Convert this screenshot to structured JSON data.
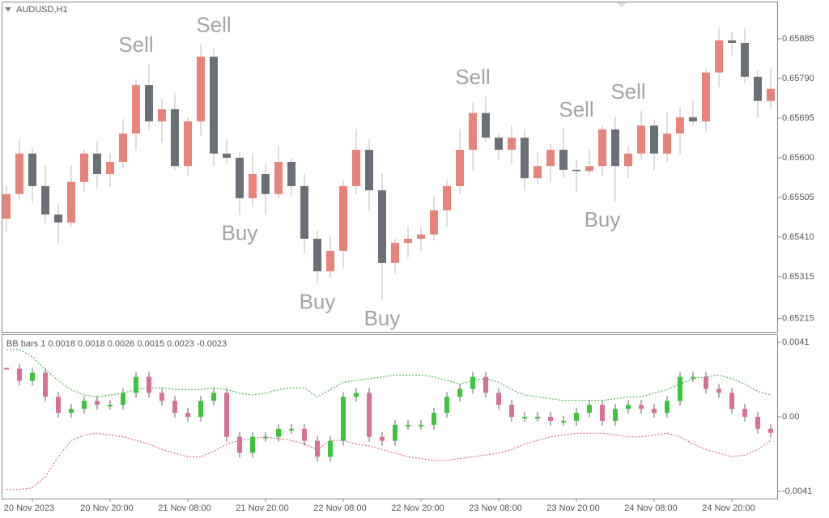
{
  "chart_data": [
    {
      "type": "candlestick",
      "title": "AUDUSD,H1",
      "up_color": "#e8837a",
      "down_color": "#6b6f76",
      "open": [
        0.65454,
        0.65513,
        0.6561,
        0.65532,
        0.65464,
        0.65445,
        0.65542,
        0.6561,
        0.65561,
        0.6559,
        0.65658,
        0.65774,
        0.65687,
        0.65716,
        0.6558,
        0.65687,
        0.65842,
        0.6561,
        0.656,
        0.65503,
        0.65561,
        0.65513,
        0.6559,
        0.65532,
        0.65406,
        0.65328,
        0.65377,
        0.65532,
        0.65619,
        0.65522,
        0.65348,
        0.65396,
        0.65406,
        0.65416,
        0.65474,
        0.65532,
        0.65619,
        0.65707,
        0.65648,
        0.65619,
        0.65648,
        0.65551,
        0.6558,
        0.65619,
        0.65571,
        0.65568,
        0.6558,
        0.65668,
        0.6558,
        0.6561,
        0.65677,
        0.6561,
        0.65658,
        0.65697,
        0.65687,
        0.65804,
        0.65881,
        0.65875,
        0.65794,
        0.65736
      ],
      "high": [
        0.65533,
        0.65645,
        0.65625,
        0.65582,
        0.65489,
        0.65582,
        0.6562,
        0.6564,
        0.6561,
        0.65693,
        0.65789,
        0.65824,
        0.65741,
        0.65756,
        0.65697,
        0.65872,
        0.65862,
        0.65645,
        0.65615,
        0.65611,
        0.65586,
        0.6563,
        0.656,
        0.65562,
        0.65426,
        0.65412,
        0.65547,
        0.65669,
        0.65644,
        0.65562,
        0.65406,
        0.65436,
        0.65436,
        0.65509,
        0.65547,
        0.65669,
        0.65732,
        0.65747,
        0.65658,
        0.65678,
        0.65668,
        0.65615,
        0.65634,
        0.65669,
        0.65596,
        0.6562,
        0.65678,
        0.65698,
        0.6563,
        0.65712,
        0.65692,
        0.65708,
        0.65722,
        0.65737,
        0.65814,
        0.65911,
        0.65901,
        0.6591,
        0.65809,
        0.65815
      ],
      "low": [
        0.65424,
        0.65498,
        0.65492,
        0.65444,
        0.65395,
        0.65435,
        0.65517,
        0.65526,
        0.65531,
        0.65575,
        0.65618,
        0.65667,
        0.65637,
        0.6557,
        0.65555,
        0.65652,
        0.6558,
        0.65585,
        0.65463,
        0.65483,
        0.65463,
        0.65503,
        0.65507,
        0.65371,
        0.65298,
        0.65313,
        0.65337,
        0.65512,
        0.65472,
        0.65258,
        0.65323,
        0.65361,
        0.65376,
        0.65401,
        0.65434,
        0.65512,
        0.65569,
        0.65638,
        0.65594,
        0.65584,
        0.65521,
        0.65536,
        0.6554,
        0.65551,
        0.65518,
        0.65558,
        0.65555,
        0.65495,
        0.6555,
        0.65595,
        0.6557,
        0.6559,
        0.65608,
        0.65677,
        0.65662,
        0.65769,
        0.65845,
        0.65779,
        0.65696,
        0.65716
      ],
      "close": [
        0.65513,
        0.6561,
        0.65532,
        0.65464,
        0.65445,
        0.65542,
        0.6561,
        0.65561,
        0.6559,
        0.65658,
        0.65774,
        0.65687,
        0.65716,
        0.6558,
        0.65687,
        0.65842,
        0.6561,
        0.656,
        0.65503,
        0.65561,
        0.65513,
        0.6559,
        0.65532,
        0.65406,
        0.65328,
        0.65377,
        0.65532,
        0.65619,
        0.65522,
        0.65348,
        0.65396,
        0.65406,
        0.65416,
        0.65474,
        0.65532,
        0.65619,
        0.65707,
        0.65648,
        0.65619,
        0.65648,
        0.65551,
        0.6558,
        0.65619,
        0.65571,
        0.65568,
        0.6558,
        0.65668,
        0.6558,
        0.6561,
        0.65677,
        0.6561,
        0.65658,
        0.65697,
        0.65687,
        0.65804,
        0.65881,
        0.65875,
        0.65794,
        0.65736,
        0.65765
      ],
      "ylim": [
        0.65183,
        0.6597
      ],
      "yticks": [
        0.65885,
        {
          "value": 0.6579,
          "label": "0.65790"
        },
        0.65695,
        {
          "value": 0.656,
          "label": "0.65600"
        },
        0.65505,
        {
          "value": 0.6541,
          "label": "0.65410"
        },
        0.65315,
        0.65215
      ],
      "annotations": [
        {
          "text": "Sell",
          "x": 10
        },
        {
          "text": "Sell",
          "x": 16
        },
        {
          "text": "Sell",
          "x": 36
        },
        {
          "text": "Sell",
          "x": 44
        },
        {
          "text": "Sell",
          "x": 48
        },
        {
          "text": "Buy",
          "x": 18
        },
        {
          "text": "Buy",
          "x": 24
        },
        {
          "text": "Buy",
          "x": 29
        },
        {
          "text": "Buy",
          "x": 46
        }
      ]
    },
    {
      "type": "oscillator",
      "title": "BB bars 1 0.0018 0.0018 0.0026 0.0015 0.0023 -0.0023",
      "up_color": "#3cc43c",
      "down_color": "#d9709a",
      "categories": [
        null,
        null,
        "20 Nov 2023",
        null,
        null,
        null,
        null,
        null,
        "20 Nov 20:00",
        null,
        null,
        null,
        null,
        null,
        "21 Nov 08:00",
        null,
        null,
        null,
        null,
        null,
        "21 Nov 20:00",
        null,
        null,
        null,
        null,
        null,
        "22 Nov 08:00",
        null,
        null,
        null,
        null,
        null,
        "22 Nov 20:00",
        null,
        null,
        null,
        null,
        null,
        "23 Nov 08:00",
        null,
        null,
        null,
        null,
        null,
        "23 Nov 20:00",
        null,
        null,
        null,
        null,
        null,
        "24 Nov 08:00",
        null,
        null,
        null,
        null,
        null,
        "24 Nov 20:00",
        null,
        null,
        null
      ],
      "values": [
        0.00265,
        0.00198,
        0.00243,
        0.0011,
        0.00022,
        0.00044,
        0.00088,
        0.00066,
        0.00066,
        0.00132,
        0.0022,
        0.00132,
        0.00088,
        0.00022,
        0,
        0.00088,
        0.00132,
        -0.0011,
        -0.00198,
        -0.0011,
        -0.0011,
        -0.00066,
        -0.00066,
        -0.00132,
        -0.0022,
        -0.00132,
        0.0011,
        0.00132,
        -0.0011,
        -0.00132,
        -0.00044,
        -0.00044,
        -0.00044,
        0.00022,
        0.0011,
        0.00154,
        0.0022,
        0.00132,
        0.00066,
        0,
        0,
        0,
        -0.00022,
        -0.00022,
        0.00022,
        0.00066,
        -0.00022,
        0.00044,
        0.00066,
        0.00044,
        0.00022,
        0.00088,
        0.0022,
        0.0022,
        0.00154,
        0.00132,
        0.00044,
        0,
        -0.00066,
        -0.00088
      ],
      "upper_band": {
        "color": "#2eaa2e",
        "values": [
          0.0037,
          0.0037,
          0.0033,
          0.0026,
          0.002,
          0.0015,
          0.0012,
          0.0011,
          0.0012,
          0.0013,
          0.0015,
          0.0016,
          0.0016,
          0.0015,
          0.0015,
          0.0015,
          0.0016,
          0.0015,
          0.0013,
          0.0012,
          0.0013,
          0.0015,
          0.0016,
          0.0016,
          0.0011,
          0.0015,
          0.0019,
          0.002,
          0.0021,
          0.0022,
          0.0023,
          0.0023,
          0.0023,
          0.0022,
          0.002,
          0.0018,
          0.002,
          0.0021,
          0.0019,
          0.0015,
          0.0012,
          0.0011,
          0.001,
          0.0009,
          0.0009,
          0.0009,
          0.0009,
          0.001,
          0.0011,
          0.0011,
          0.0013,
          0.0015,
          0.0018,
          0.0021,
          0.0022,
          0.0023,
          0.0021,
          0.0018,
          0.0014,
          0.0012
        ]
      },
      "lower_band": {
        "color": "#d9507a",
        "values": [
          -0.004,
          -0.004,
          -0.0039,
          -0.0033,
          -0.0022,
          -0.0013,
          -0.001,
          -0.0009,
          -0.001,
          -0.0011,
          -0.0013,
          -0.0015,
          -0.0018,
          -0.002,
          -0.0022,
          -0.0022,
          -0.0019,
          -0.0015,
          -0.0013,
          -0.0012,
          -0.0011,
          -0.0012,
          -0.0013,
          -0.0015,
          -0.0018,
          -0.0013,
          -0.0013,
          -0.0015,
          -0.0016,
          -0.0018,
          -0.002,
          -0.0022,
          -0.0023,
          -0.0024,
          -0.0024,
          -0.0023,
          -0.0022,
          -0.0021,
          -0.002,
          -0.0018,
          -0.0015,
          -0.0013,
          -0.0011,
          -0.001,
          -0.0009,
          -0.0009,
          -0.0009,
          -0.001,
          -0.0011,
          -0.0011,
          -0.001,
          -0.0009,
          -0.0011,
          -0.0015,
          -0.0018,
          -0.002,
          -0.0022,
          -0.0021,
          -0.0018,
          -0.0013
        ]
      },
      "ylim": [
        -0.0045,
        0.0045
      ],
      "yticks": [
        0.0041,
        {
          "value": 0,
          "label": "0.00"
        },
        -0.0041
      ]
    }
  ]
}
